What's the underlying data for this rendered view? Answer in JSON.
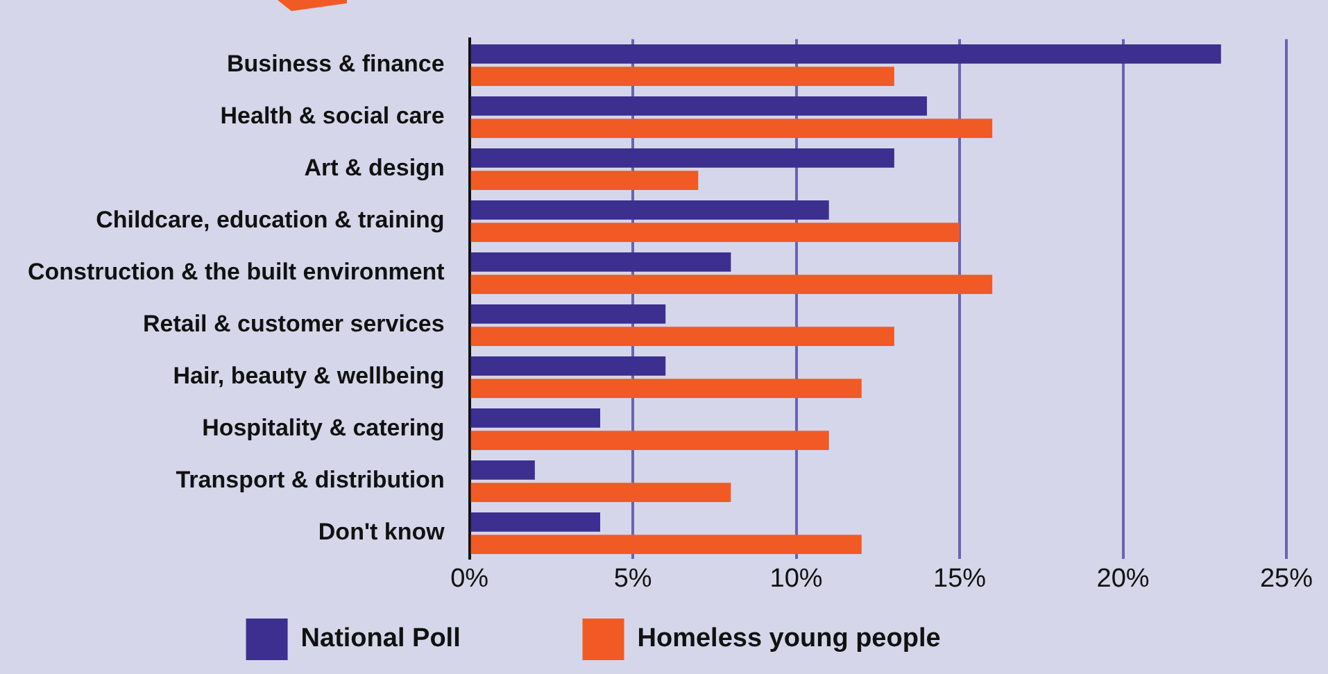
{
  "chart_data": {
    "type": "bar",
    "orientation": "horizontal",
    "categories": [
      "Business & finance",
      "Health & social care",
      "Art & design",
      "Childcare, education & training",
      "Construction & the built environment",
      "Retail & customer services",
      "Hair, beauty & wellbeing",
      "Hospitality & catering",
      "Transport & distribution",
      "Don't know"
    ],
    "series": [
      {
        "name": "National Poll",
        "color": "#3d2f8f",
        "values": [
          23,
          14,
          13,
          11,
          8,
          6,
          6,
          4,
          2,
          4
        ]
      },
      {
        "name": "Homeless young people",
        "color": "#f15a24",
        "values": [
          13,
          16,
          7,
          15,
          16,
          13,
          12,
          11,
          8,
          12
        ]
      }
    ],
    "xlim": [
      0,
      25
    ],
    "xticks": [
      {
        "value": 0,
        "label": "0%"
      },
      {
        "value": 5,
        "label": "5%"
      },
      {
        "value": 10,
        "label": "10%"
      },
      {
        "value": 15,
        "label": "15%"
      },
      {
        "value": 20,
        "label": "20%"
      },
      {
        "value": 25,
        "label": "25%"
      }
    ],
    "grid": "x",
    "legend": "bottom"
  }
}
